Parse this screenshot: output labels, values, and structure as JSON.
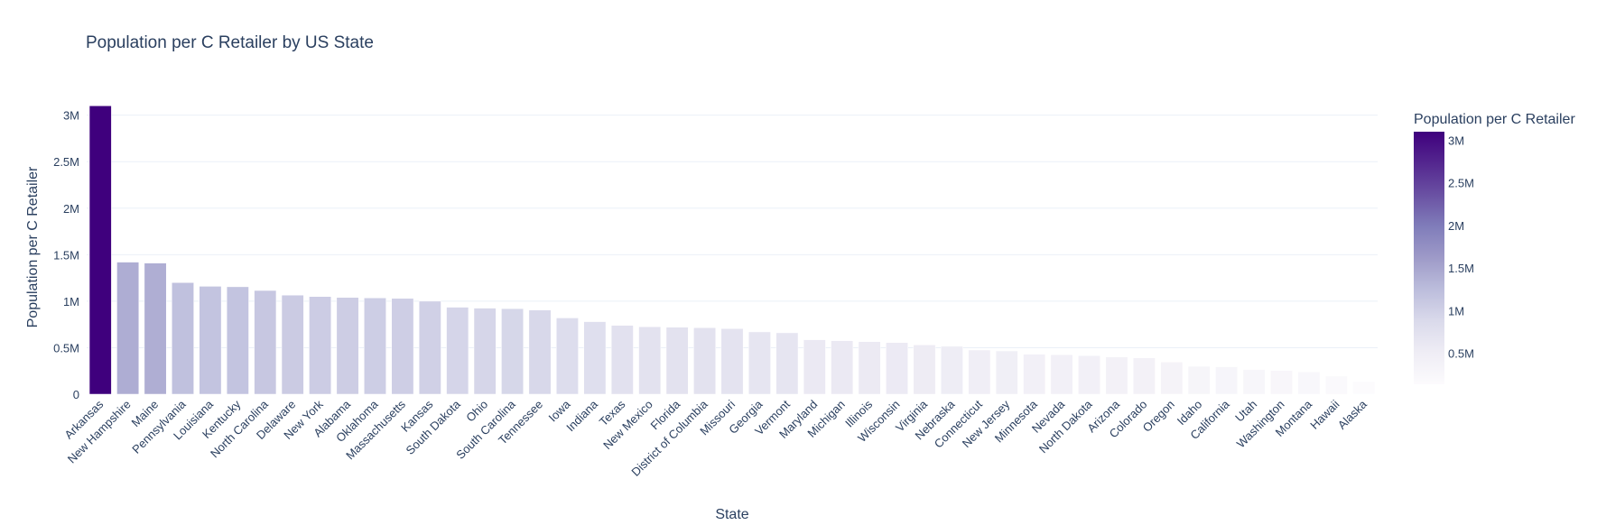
{
  "chart_data": {
    "type": "bar",
    "title": "Population per C Retailer by US State",
    "xlabel": "State",
    "ylabel": "Population per C Retailer",
    "colorbar_title": "Population per C Retailer",
    "ylim": [
      0,
      3200000
    ],
    "y_ticks": [
      0,
      500000,
      1000000,
      1500000,
      2000000,
      2500000,
      3000000
    ],
    "y_tick_labels": [
      "0",
      "0.5M",
      "1M",
      "1.5M",
      "2M",
      "2.5M",
      "3M"
    ],
    "colorbar_ticks": [
      500000,
      1000000,
      1500000,
      2000000,
      2500000,
      3000000
    ],
    "colorbar_tick_labels": [
      "0.5M",
      "1M",
      "1.5M",
      "2M",
      "2.5M",
      "3M"
    ],
    "colorscale": [
      "#fcfbfd",
      "#efedf5",
      "#dadaeb",
      "#bcbddc",
      "#9e9ac8",
      "#807dba",
      "#6a51a3",
      "#54278f",
      "#3f007d"
    ],
    "categories": [
      "Arkansas",
      "New Hampshire",
      "Maine",
      "Pennsylvania",
      "Louisiana",
      "Kentucky",
      "North Carolina",
      "Delaware",
      "New York",
      "Alabama",
      "Oklahoma",
      "Massachusetts",
      "Kansas",
      "South Dakota",
      "Ohio",
      "South Carolina",
      "Tennessee",
      "Iowa",
      "Indiana",
      "Texas",
      "New Mexico",
      "Florida",
      "District of Columbia",
      "Missouri",
      "Georgia",
      "Vermont",
      "Maryland",
      "Michigan",
      "Illinois",
      "Wisconsin",
      "Virginia",
      "Nebraska",
      "Connecticut",
      "New Jersey",
      "Minnesota",
      "Nevada",
      "North Dakota",
      "Arizona",
      "Colorado",
      "Oregon",
      "Idaho",
      "California",
      "Utah",
      "Washington",
      "Montana",
      "Hawaii",
      "Alaska"
    ],
    "values": [
      3100000,
      1420000,
      1410000,
      1200000,
      1160000,
      1155000,
      1115000,
      1065000,
      1050000,
      1040000,
      1035000,
      1030000,
      1000000,
      935000,
      925000,
      920000,
      905000,
      820000,
      780000,
      740000,
      725000,
      720000,
      715000,
      705000,
      670000,
      660000,
      585000,
      575000,
      565000,
      555000,
      530000,
      515000,
      475000,
      465000,
      430000,
      425000,
      415000,
      400000,
      390000,
      345000,
      300000,
      295000,
      265000,
      255000,
      240000,
      195000,
      135000
    ]
  }
}
